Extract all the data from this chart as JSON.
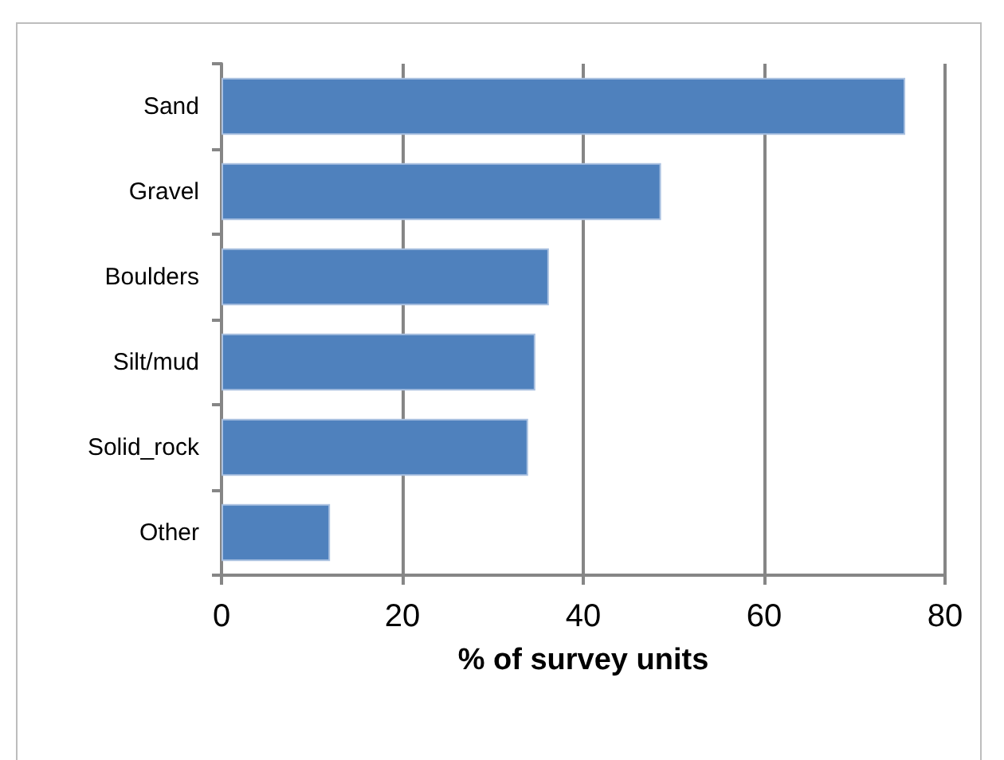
{
  "chart_data": {
    "type": "bar",
    "orientation": "horizontal",
    "xlabel": "% of survey units",
    "categories": [
      "Sand",
      "Gravel",
      "Boulders",
      "Silt/mud",
      "Solid_rock",
      "Other"
    ],
    "values": [
      75.6,
      48.6,
      36.2,
      34.7,
      33.9,
      12.0
    ],
    "color": "#4f81bd",
    "xlim": [
      0,
      80
    ],
    "xticks": [
      0,
      20,
      40,
      60,
      80
    ],
    "grid": "x"
  }
}
